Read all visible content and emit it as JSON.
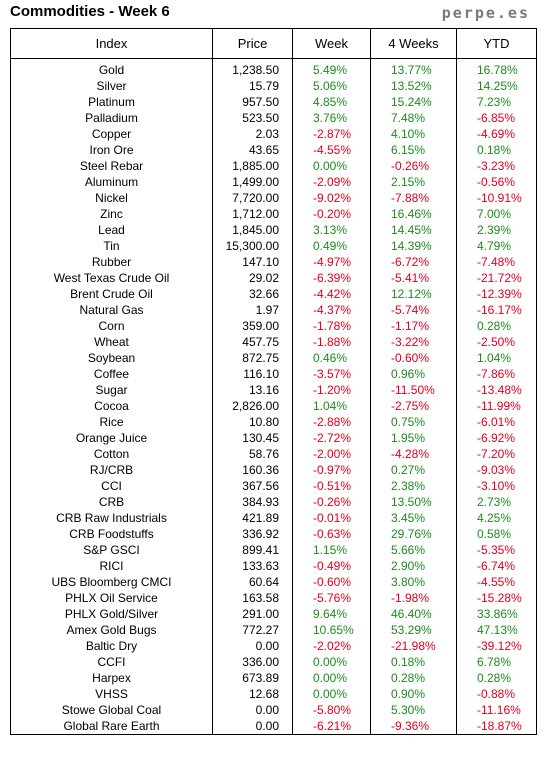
{
  "title": "Commodities - Week 6",
  "brand": "perpe.es",
  "colors": {
    "positive": "#1e8a1e",
    "negative": "#e0001b"
  },
  "columns": [
    "Index",
    "Price",
    "Week",
    "4 Weeks",
    "YTD"
  ],
  "rows": [
    [
      "Gold",
      "1,238.50",
      "5.49%",
      "13.77%",
      "16.78%"
    ],
    [
      "Silver",
      "15.79",
      "5.06%",
      "13.52%",
      "14.25%"
    ],
    [
      "Platinum",
      "957.50",
      "4.85%",
      "15.24%",
      "7.23%"
    ],
    [
      "Palladium",
      "523.50",
      "3.76%",
      "7.48%",
      "-6.85%"
    ],
    [
      "Copper",
      "2.03",
      "-2.87%",
      "4.10%",
      "-4.69%"
    ],
    [
      "Iron Ore",
      "43.65",
      "-4.55%",
      "6.15%",
      "0.18%"
    ],
    [
      "Steel Rebar",
      "1,885.00",
      "0.00%",
      "-0.26%",
      "-3.23%"
    ],
    [
      "Aluminum",
      "1,499.00",
      "-2.09%",
      "2.15%",
      "-0.56%"
    ],
    [
      "Nickel",
      "7,720.00",
      "-9.02%",
      "-7.88%",
      "-10.91%"
    ],
    [
      "Zinc",
      "1,712.00",
      "-0.20%",
      "16.46%",
      "7.00%"
    ],
    [
      "Lead",
      "1,845.00",
      "3.13%",
      "14.45%",
      "2.39%"
    ],
    [
      "Tin",
      "15,300.00",
      "0.49%",
      "14.39%",
      "4.79%"
    ],
    [
      "Rubber",
      "147.10",
      "-4.97%",
      "-6.72%",
      "-7.48%"
    ],
    [
      "West Texas Crude Oil",
      "29.02",
      "-6.39%",
      "-5.41%",
      "-21.72%"
    ],
    [
      "Brent Crude Oil",
      "32.66",
      "-4.42%",
      "12.12%",
      "-12.39%"
    ],
    [
      "Natural Gas",
      "1.97",
      "-4.37%",
      "-5.74%",
      "-16.17%"
    ],
    [
      "Corn",
      "359.00",
      "-1.78%",
      "-1.17%",
      "0.28%"
    ],
    [
      "Wheat",
      "457.75",
      "-1.88%",
      "-3.22%",
      "-2.50%"
    ],
    [
      "Soybean",
      "872.75",
      "0.46%",
      "-0.60%",
      "1.04%"
    ],
    [
      "Coffee",
      "116.10",
      "-3.57%",
      "0.96%",
      "-7.86%"
    ],
    [
      "Sugar",
      "13.16",
      "-1.20%",
      "-11.50%",
      "-13.48%"
    ],
    [
      "Cocoa",
      "2,826.00",
      "1.04%",
      "-2.75%",
      "-11.99%"
    ],
    [
      "Rice",
      "10.80",
      "-2.88%",
      "0.75%",
      "-6.01%"
    ],
    [
      "Orange Juice",
      "130.45",
      "-2.72%",
      "1.95%",
      "-6.92%"
    ],
    [
      "Cotton",
      "58.76",
      "-2.00%",
      "-4.28%",
      "-7.20%"
    ],
    [
      "RJ/CRB",
      "160.36",
      "-0.97%",
      "0.27%",
      "-9.03%"
    ],
    [
      "CCI",
      "367.56",
      "-0.51%",
      "2.38%",
      "-3.10%"
    ],
    [
      "CRB",
      "384.93",
      "-0.26%",
      "13.50%",
      "2.73%"
    ],
    [
      "CRB Raw Industrials",
      "421.89",
      "-0.01%",
      "3.45%",
      "4.25%"
    ],
    [
      "CRB Foodstuffs",
      "336.92",
      "-0.63%",
      "29.76%",
      "0.58%"
    ],
    [
      "S&P GSCI",
      "899.41",
      "1.15%",
      "5.66%",
      "-5.35%"
    ],
    [
      "RICI",
      "133.63",
      "-0.49%",
      "2.90%",
      "-6.74%"
    ],
    [
      "UBS Bloomberg CMCI",
      "60.64",
      "-0.60%",
      "3.80%",
      "-4.55%"
    ],
    [
      "PHLX Oil Service",
      "163.58",
      "-5.76%",
      "-1.98%",
      "-15.28%"
    ],
    [
      "PHLX Gold/Silver",
      "291.00",
      "9.64%",
      "46.40%",
      "33.86%"
    ],
    [
      "Amex Gold Bugs",
      "772.27",
      "10.65%",
      "53.29%",
      "47.13%"
    ],
    [
      "Baltic Dry",
      "0.00",
      "-2.02%",
      "-21.98%",
      "-39.12%"
    ],
    [
      "CCFI",
      "336.00",
      "0.00%",
      "0.18%",
      "6.78%"
    ],
    [
      "Harpex",
      "673.89",
      "0.00%",
      "0.28%",
      "0.28%"
    ],
    [
      "VHSS",
      "12.68",
      "0.00%",
      "0.90%",
      "-0.88%"
    ],
    [
      "Stowe Global Coal",
      "0.00",
      "-5.80%",
      "5.30%",
      "-11.16%"
    ],
    [
      "Global Rare Earth",
      "0.00",
      "-6.21%",
      "-9.36%",
      "-18.87%"
    ]
  ]
}
